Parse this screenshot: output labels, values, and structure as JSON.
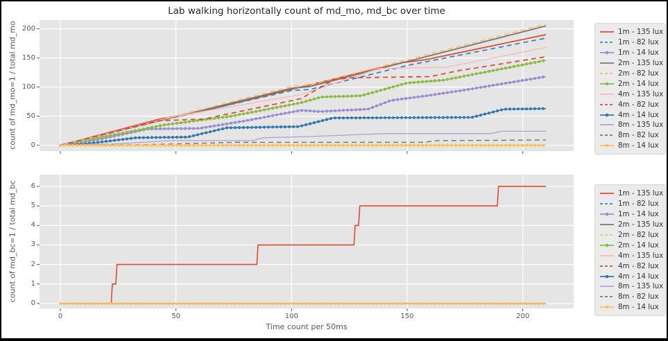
{
  "title": "Lab walking horizontally count of md_mo, md_bc over time",
  "xlabel": "Time count per 50ms",
  "colors": {
    "panel_bg": "#E5E5E5",
    "grid": "#FFFFFF",
    "tick_text": "#555555",
    "red": "#E24A33",
    "blue": "#348ABD",
    "purple": "#988ED5",
    "gray": "#777777",
    "orange": "#FBC15E",
    "green": "#8EBA42",
    "pink": "#FFB5B8",
    "steel_blue": "#3278AE",
    "light_purple": "#ABA2D6"
  },
  "legend": {
    "entries": [
      {
        "label": "1m - 135 lux",
        "color": "#E24A33",
        "dash": false,
        "marker": false
      },
      {
        "label": "1m - 82 lux",
        "color": "#348ABD",
        "dash": true,
        "marker": false
      },
      {
        "label": "1m - 14 lux",
        "color": "#988ED5",
        "dash": false,
        "marker": true
      },
      {
        "label": "2m - 135 lux",
        "color": "#777777",
        "dash": false,
        "marker": false
      },
      {
        "label": "2m - 82 lux",
        "color": "#FBC15E",
        "dash": true,
        "marker": false
      },
      {
        "label": "2m - 14 lux",
        "color": "#8EBA42",
        "dash": false,
        "marker": true
      },
      {
        "label": "4m - 135 lux",
        "color": "#FFB5B8",
        "dash": false,
        "marker": false
      },
      {
        "label": "4m - 82 lux",
        "color": "#E24A33",
        "dash": true,
        "marker": false
      },
      {
        "label": "4m - 14 lux",
        "color": "#3278AE",
        "dash": false,
        "marker": true
      },
      {
        "label": "8m - 135 lux",
        "color": "#ABA2D6",
        "dash": false,
        "marker": false
      },
      {
        "label": "8m - 82 lux",
        "color": "#777777",
        "dash": true,
        "marker": false
      },
      {
        "label": "8m - 14 lux",
        "color": "#FBC15E",
        "dash": false,
        "marker": true
      }
    ]
  },
  "chart_data": [
    {
      "type": "line",
      "name": "md_mo",
      "ylabel": "count of md_mo=1 / total md_mo",
      "xlabel": "",
      "xlim": [
        -9,
        222
      ],
      "ylim": [
        -10,
        215
      ],
      "xticks": [
        0,
        50,
        100,
        150,
        200
      ],
      "xtick_labels_visible": false,
      "yticks": [
        0,
        50,
        100,
        150,
        200
      ],
      "grid": true,
      "legend_position": "outside-right",
      "series": [
        {
          "name": "1m - 135 lux",
          "color": "#E24A33",
          "dash": false,
          "markers": false,
          "width": 1.8,
          "points": [
            [
              0,
              0
            ],
            [
              43,
              45
            ],
            [
              60,
              57
            ],
            [
              104,
              100
            ],
            [
              148,
              142
            ],
            [
              158,
              147
            ],
            [
              210,
              190
            ]
          ]
        },
        {
          "name": "1m - 82 lux",
          "color": "#348ABD",
          "dash": true,
          "markers": false,
          "width": 1.8,
          "points": [
            [
              0,
              0
            ],
            [
              43,
              42
            ],
            [
              100,
              94
            ],
            [
              108,
              96
            ],
            [
              150,
              137
            ],
            [
              210,
              184
            ]
          ]
        },
        {
          "name": "1m - 14 lux",
          "color": "#988ED5",
          "dash": false,
          "markers": true,
          "width": 1.6,
          "points": [
            [
              0,
              0
            ],
            [
              8,
              3
            ],
            [
              38,
              28
            ],
            [
              60,
              29
            ],
            [
              80,
              42
            ],
            [
              104,
              60
            ],
            [
              112,
              58
            ],
            [
              133,
              62
            ],
            [
              143,
              77
            ],
            [
              160,
              86
            ],
            [
              175,
              95
            ],
            [
              210,
              118
            ]
          ]
        },
        {
          "name": "2m - 135 lux",
          "color": "#777777",
          "dash": false,
          "markers": false,
          "width": 1.8,
          "points": [
            [
              0,
              0
            ],
            [
              100,
              98
            ],
            [
              108,
              101
            ],
            [
              210,
              205
            ]
          ]
        },
        {
          "name": "2m - 82 lux",
          "color": "#FBC15E",
          "dash": true,
          "markers": false,
          "width": 1.8,
          "points": [
            [
              0,
              0
            ],
            [
              100,
              101
            ],
            [
              108,
              104
            ],
            [
              210,
              208
            ]
          ]
        },
        {
          "name": "2m - 14 lux",
          "color": "#8EBA42",
          "dash": false,
          "markers": true,
          "width": 1.6,
          "points": [
            [
              0,
              0
            ],
            [
              45,
              35
            ],
            [
              74,
              50
            ],
            [
              104,
              73
            ],
            [
              113,
              83
            ],
            [
              130,
              85
            ],
            [
              150,
              107
            ],
            [
              166,
              112
            ],
            [
              210,
              146
            ]
          ]
        },
        {
          "name": "4m - 135 lux",
          "color": "#FFB5B8",
          "dash": false,
          "markers": false,
          "width": 1.3,
          "points": [
            [
              0,
              0
            ],
            [
              50,
              50
            ],
            [
              104,
              87
            ],
            [
              138,
              132
            ],
            [
              167,
              134
            ],
            [
              210,
              168
            ]
          ]
        },
        {
          "name": "4m - 82 lux",
          "color": "#E24A33",
          "dash": true,
          "markers": false,
          "width": 1.8,
          "points": [
            [
              0,
              0
            ],
            [
              42,
              42
            ],
            [
              62,
              45
            ],
            [
              104,
              80
            ],
            [
              118,
              112
            ],
            [
              125,
              116
            ],
            [
              160,
              118
            ],
            [
              172,
              128
            ],
            [
              210,
              152
            ]
          ]
        },
        {
          "name": "4m - 14 lux",
          "color": "#3278AE",
          "dash": false,
          "markers": true,
          "width": 1.6,
          "points": [
            [
              0,
              0
            ],
            [
              10,
              2
            ],
            [
              33,
              13
            ],
            [
              55,
              14
            ],
            [
              72,
              30
            ],
            [
              103,
              32
            ],
            [
              118,
              47
            ],
            [
              178,
              48
            ],
            [
              192,
              62
            ],
            [
              210,
              63
            ]
          ]
        },
        {
          "name": "8m - 135 lux",
          "color": "#ABA2D6",
          "dash": false,
          "markers": false,
          "width": 1.3,
          "points": [
            [
              0,
              0
            ],
            [
              22,
              2
            ],
            [
              48,
              8
            ],
            [
              83,
              8
            ],
            [
              88,
              13
            ],
            [
              108,
              15
            ],
            [
              140,
              20
            ],
            [
              186,
              20
            ],
            [
              191,
              24
            ],
            [
              210,
              24
            ]
          ]
        },
        {
          "name": "8m - 82 lux",
          "color": "#777777",
          "dash": true,
          "markers": false,
          "width": 1.5,
          "points": [
            [
              0,
              0
            ],
            [
              35,
              1
            ],
            [
              75,
              5
            ],
            [
              157,
              5
            ],
            [
              163,
              8
            ],
            [
              210,
              9
            ]
          ]
        },
        {
          "name": "8m - 14 lux",
          "color": "#FBC15E",
          "dash": false,
          "markers": true,
          "width": 1.6,
          "points": [
            [
              0,
              0
            ],
            [
              210,
              0
            ]
          ]
        }
      ]
    },
    {
      "type": "line",
      "name": "md_bc",
      "ylabel": "count of md_bc=1 / total md_bc",
      "xlabel": "Time count per 50ms",
      "xlim": [
        -9,
        222
      ],
      "ylim": [
        -0.25,
        6.6
      ],
      "xticks": [
        0,
        50,
        100,
        150,
        200
      ],
      "xtick_labels_visible": true,
      "yticks": [
        0,
        1,
        2,
        3,
        4,
        5,
        6
      ],
      "grid": true,
      "legend_position": "outside-right",
      "series": [
        {
          "name": "1m - 135 lux",
          "color": "#E24A33",
          "dash": false,
          "markers": false,
          "width": 1.6,
          "points": [
            [
              0,
              0
            ],
            [
              22,
              0
            ],
            [
              22.5,
              1
            ],
            [
              24,
              1
            ],
            [
              24.5,
              2
            ],
            [
              85,
              2
            ],
            [
              85.5,
              3
            ],
            [
              127,
              3
            ],
            [
              127.5,
              4
            ],
            [
              129,
              4
            ],
            [
              129.5,
              5
            ],
            [
              189,
              5
            ],
            [
              189.5,
              6
            ],
            [
              210,
              6
            ]
          ]
        },
        {
          "name": "1m - 82 lux",
          "color": "#348ABD",
          "dash": true,
          "markers": false,
          "width": 1.6,
          "points": [
            [
              0,
              0
            ],
            [
              210,
              0
            ]
          ]
        },
        {
          "name": "1m - 14 lux",
          "color": "#988ED5",
          "dash": false,
          "markers": false,
          "width": 1.6,
          "points": [
            [
              0,
              0
            ],
            [
              210,
              0
            ]
          ]
        },
        {
          "name": "2m - 135 lux",
          "color": "#777777",
          "dash": false,
          "markers": false,
          "width": 1.6,
          "points": [
            [
              0,
              0
            ],
            [
              210,
              0
            ]
          ]
        },
        {
          "name": "2m - 82 lux",
          "color": "#FBC15E",
          "dash": true,
          "markers": false,
          "width": 1.6,
          "points": [
            [
              0,
              0
            ],
            [
              210,
              0
            ]
          ]
        },
        {
          "name": "2m - 14 lux",
          "color": "#8EBA42",
          "dash": false,
          "markers": false,
          "width": 1.6,
          "points": [
            [
              0,
              0
            ],
            [
              210,
              0
            ]
          ]
        },
        {
          "name": "4m - 135 lux",
          "color": "#FFB5B8",
          "dash": false,
          "markers": false,
          "width": 1.3,
          "points": [
            [
              0,
              0
            ],
            [
              210,
              0
            ]
          ]
        },
        {
          "name": "4m - 82 lux",
          "color": "#E24A33",
          "dash": true,
          "markers": false,
          "width": 1.6,
          "points": [
            [
              0,
              0
            ],
            [
              210,
              0
            ]
          ]
        },
        {
          "name": "4m - 14 lux",
          "color": "#3278AE",
          "dash": false,
          "markers": false,
          "width": 1.6,
          "points": [
            [
              0,
              0
            ],
            [
              210,
              0
            ]
          ]
        },
        {
          "name": "8m - 135 lux",
          "color": "#ABA2D6",
          "dash": false,
          "markers": false,
          "width": 1.3,
          "points": [
            [
              0,
              0
            ],
            [
              210,
              0
            ]
          ]
        },
        {
          "name": "8m - 82 lux",
          "color": "#777777",
          "dash": true,
          "markers": false,
          "width": 1.5,
          "points": [
            [
              0,
              0
            ],
            [
              210,
              0
            ]
          ]
        },
        {
          "name": "8m - 14 lux",
          "color": "#FBC15E",
          "dash": false,
          "markers": true,
          "width": 1.6,
          "points": [
            [
              0,
              0
            ],
            [
              210,
              0
            ]
          ]
        }
      ]
    }
  ]
}
